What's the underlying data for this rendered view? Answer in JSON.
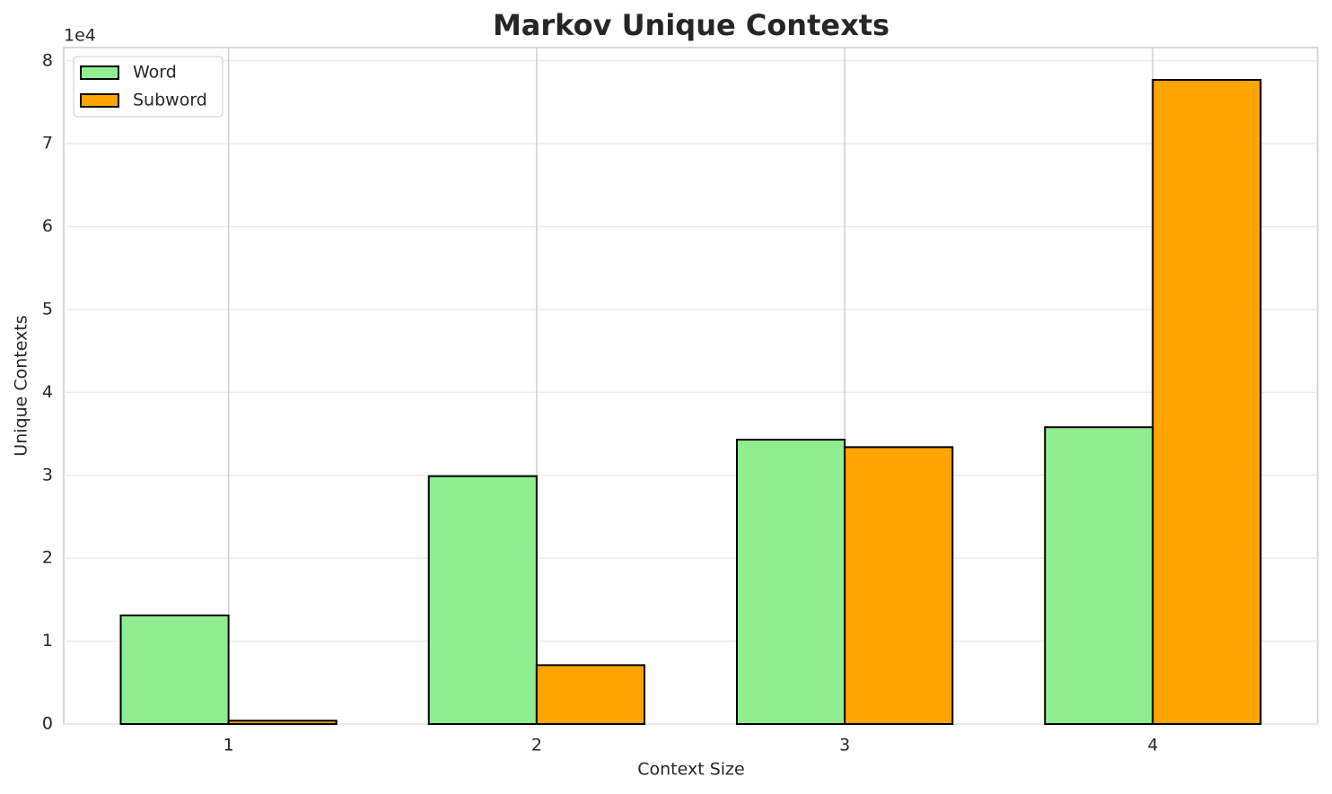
{
  "chart_data": {
    "type": "bar",
    "title": "Markov Unique Contexts",
    "x_label": "Context Size",
    "y_label": "Unique Contexts",
    "y_offset_label": "1e4",
    "x": [
      1,
      2,
      3,
      4
    ],
    "xlim": [
      0.465,
      4.535
    ],
    "xticks": [
      1,
      2,
      3,
      4
    ],
    "ylim": [
      0,
      8.16
    ],
    "yticks": [
      0,
      1,
      2,
      3,
      4,
      5,
      6,
      7,
      8
    ],
    "grid": true,
    "legend": "upper left",
    "series": [
      {
        "name": "Word",
        "color": "#90ee90",
        "values": [
          1.31,
          2.99,
          3.43,
          3.58
        ]
      },
      {
        "name": "Subword",
        "color": "#ffa500",
        "values": [
          0.04,
          0.71,
          3.34,
          7.77
        ]
      }
    ]
  }
}
